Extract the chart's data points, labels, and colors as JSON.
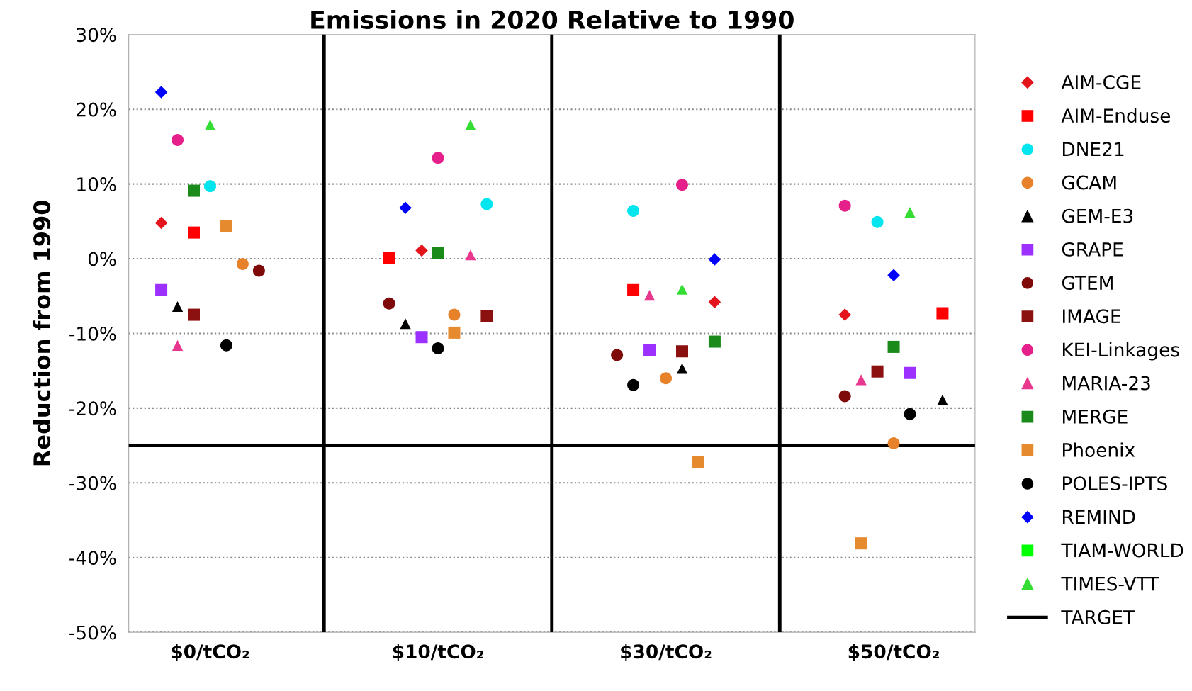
{
  "chart_data": {
    "type": "scatter",
    "title": "Emissions in 2020 Relative to 1990",
    "ylabel": "Reduction from 1990",
    "categories": [
      null,
      null,
      null,
      "$0/tCO₂",
      null,
      null,
      null,
      null,
      null,
      null,
      null,
      null,
      null,
      null,
      null,
      null,
      null,
      "$10/tCO₂",
      null,
      null,
      null,
      null,
      null,
      null,
      null,
      null,
      null,
      null,
      null,
      null,
      null,
      "$30/tCO₂",
      null,
      null,
      null,
      null,
      null,
      null,
      null,
      null,
      null,
      null,
      null,
      null,
      null,
      "$50/tCO₂",
      null,
      null,
      null
    ],
    "ylim": [
      -50,
      30
    ],
    "yticks": [
      {
        "value": 30,
        "label": "30%"
      },
      {
        "value": 20,
        "label": "20%"
      },
      {
        "value": 10,
        "label": "10%"
      },
      {
        "value": 0,
        "label": "0%"
      },
      {
        "value": -10,
        "label": "-10%"
      },
      {
        "value": -20,
        "label": "-20%"
      },
      {
        "value": -30,
        "label": "-30%"
      },
      {
        "value": -40,
        "label": "-40%"
      },
      {
        "value": -50,
        "label": "-50%"
      }
    ],
    "grid": true,
    "legend": "right",
    "ref_lines": [
      {
        "axis": "y",
        "value": -25,
        "label": "TARGET",
        "color": "#000000"
      }
    ],
    "series": [
      {
        "name": "AIM-CGE",
        "color": "#e3141c",
        "marker": "diamond",
        "values": [
          4.8,
          null,
          null,
          null,
          null,
          null,
          null,
          null,
          null,
          null,
          null,
          null,
          null,
          null,
          null,
          null,
          1.1,
          null,
          null,
          null,
          null,
          null,
          null,
          null,
          null,
          null,
          null,
          null,
          null,
          null,
          null,
          null,
          null,
          null,
          -5.8,
          null,
          null,
          null,
          null,
          null,
          null,
          null,
          -7.5,
          null,
          null,
          null,
          null,
          null,
          null
        ]
      },
      {
        "name": "AIM-Enduse",
        "color": "#ff0000",
        "marker": "square",
        "values": [
          null,
          null,
          3.5,
          null,
          null,
          null,
          null,
          null,
          null,
          null,
          null,
          null,
          null,
          null,
          0.1,
          null,
          null,
          null,
          null,
          null,
          null,
          null,
          null,
          null,
          null,
          null,
          null,
          null,
          null,
          -4.2,
          null,
          null,
          null,
          null,
          null,
          null,
          null,
          null,
          null,
          null,
          null,
          null,
          null,
          null,
          null,
          null,
          null,
          null,
          -7.3
        ]
      },
      {
        "name": "DNE21",
        "color": "#00e5ee",
        "marker": "circle",
        "values": [
          null,
          null,
          null,
          9.7,
          null,
          null,
          null,
          null,
          null,
          null,
          null,
          null,
          null,
          null,
          null,
          null,
          null,
          null,
          null,
          null,
          7.3,
          null,
          null,
          null,
          null,
          null,
          null,
          null,
          null,
          6.4,
          null,
          null,
          null,
          null,
          null,
          null,
          null,
          null,
          null,
          null,
          null,
          null,
          null,
          null,
          4.9,
          null,
          null,
          null,
          null
        ]
      },
      {
        "name": "GCAM",
        "color": "#e8822a",
        "marker": "circle",
        "values": [
          null,
          null,
          null,
          null,
          null,
          -0.7,
          null,
          null,
          null,
          null,
          null,
          null,
          null,
          null,
          null,
          null,
          null,
          null,
          -7.5,
          null,
          null,
          null,
          null,
          null,
          null,
          null,
          null,
          null,
          null,
          null,
          null,
          -16,
          null,
          null,
          null,
          null,
          null,
          null,
          null,
          null,
          null,
          null,
          null,
          null,
          null,
          -24.7,
          null,
          null,
          null
        ]
      },
      {
        "name": "GEM-E3",
        "color": "#000000",
        "marker": "triangle",
        "values": [
          null,
          -6.4,
          null,
          null,
          null,
          null,
          null,
          null,
          null,
          null,
          null,
          null,
          null,
          null,
          null,
          -8.7,
          null,
          null,
          null,
          null,
          null,
          null,
          null,
          null,
          null,
          null,
          null,
          null,
          null,
          null,
          null,
          null,
          -14.7,
          null,
          null,
          null,
          null,
          null,
          null,
          null,
          null,
          null,
          null,
          null,
          null,
          null,
          null,
          null,
          -18.9
        ]
      },
      {
        "name": "GRAPE",
        "color": "#9b30ff",
        "marker": "square",
        "values": [
          -4.2,
          null,
          null,
          null,
          null,
          null,
          null,
          null,
          null,
          null,
          null,
          null,
          null,
          null,
          null,
          null,
          -10.5,
          null,
          null,
          null,
          null,
          null,
          null,
          null,
          null,
          null,
          null,
          null,
          null,
          null,
          -12.2,
          null,
          null,
          null,
          null,
          null,
          null,
          null,
          null,
          null,
          null,
          null,
          null,
          null,
          null,
          null,
          -15.3,
          null,
          null
        ]
      },
      {
        "name": "GTEM",
        "color": "#7f0a0a",
        "marker": "circle",
        "values": [
          null,
          null,
          null,
          null,
          null,
          null,
          -1.6,
          null,
          null,
          null,
          null,
          null,
          null,
          null,
          -6,
          null,
          null,
          null,
          null,
          null,
          null,
          null,
          null,
          null,
          null,
          null,
          null,
          null,
          -12.9,
          null,
          null,
          null,
          null,
          null,
          null,
          null,
          null,
          null,
          null,
          null,
          null,
          null,
          -18.4,
          null,
          null,
          null,
          null,
          null,
          null
        ]
      },
      {
        "name": "IMAGE",
        "color": "#8b1010",
        "marker": "square",
        "values": [
          null,
          null,
          -7.5,
          null,
          null,
          null,
          null,
          null,
          null,
          null,
          null,
          null,
          null,
          null,
          null,
          null,
          null,
          null,
          null,
          null,
          -7.7,
          null,
          null,
          null,
          null,
          null,
          null,
          null,
          null,
          null,
          null,
          null,
          -12.4,
          null,
          null,
          null,
          null,
          null,
          null,
          null,
          null,
          null,
          null,
          null,
          -15.1,
          null,
          null,
          null,
          null
        ]
      },
      {
        "name": "KEI-Linkages",
        "color": "#e6208a",
        "marker": "circle",
        "values": [
          null,
          15.9,
          null,
          null,
          null,
          null,
          null,
          null,
          null,
          null,
          null,
          null,
          null,
          null,
          null,
          null,
          null,
          13.5,
          null,
          null,
          null,
          null,
          null,
          null,
          null,
          null,
          null,
          null,
          null,
          null,
          null,
          null,
          9.9,
          null,
          null,
          null,
          null,
          null,
          null,
          null,
          null,
          null,
          7.1,
          null,
          null,
          null,
          null,
          null,
          null
        ]
      },
      {
        "name": "MARIA-23",
        "color": "#e8388e",
        "marker": "triangle",
        "values": [
          null,
          -11.6,
          null,
          null,
          null,
          null,
          null,
          null,
          null,
          null,
          null,
          null,
          null,
          null,
          null,
          null,
          null,
          null,
          null,
          0.5,
          null,
          null,
          null,
          null,
          null,
          null,
          null,
          null,
          null,
          null,
          -4.9,
          null,
          null,
          null,
          null,
          null,
          null,
          null,
          null,
          null,
          null,
          null,
          null,
          -16.2,
          null,
          null,
          null,
          null,
          null
        ]
      },
      {
        "name": "MERGE",
        "color": "#1a8a1a",
        "marker": "square",
        "values": [
          null,
          null,
          9.1,
          null,
          null,
          null,
          null,
          null,
          null,
          null,
          null,
          null,
          null,
          null,
          null,
          null,
          null,
          0.8,
          null,
          null,
          null,
          null,
          null,
          null,
          null,
          null,
          null,
          null,
          null,
          null,
          null,
          null,
          null,
          null,
          -11.1,
          null,
          null,
          null,
          null,
          null,
          null,
          null,
          null,
          null,
          null,
          -11.8,
          null,
          null,
          null
        ]
      },
      {
        "name": "Phoenix",
        "color": "#e58a2e",
        "marker": "square",
        "values": [
          null,
          null,
          null,
          null,
          4.4,
          null,
          null,
          null,
          null,
          null,
          null,
          null,
          null,
          null,
          null,
          null,
          null,
          null,
          -9.9,
          null,
          null,
          null,
          null,
          null,
          null,
          null,
          null,
          null,
          null,
          null,
          null,
          null,
          null,
          -27.2,
          null,
          null,
          null,
          null,
          null,
          null,
          null,
          null,
          null,
          -38.1,
          null,
          null,
          null,
          null,
          null
        ]
      },
      {
        "name": "POLES-IPTS",
        "color": "#000000",
        "marker": "circle",
        "values": [
          null,
          null,
          null,
          null,
          -11.6,
          null,
          null,
          null,
          null,
          null,
          null,
          null,
          null,
          null,
          null,
          null,
          null,
          -12,
          null,
          null,
          null,
          null,
          null,
          null,
          null,
          null,
          null,
          null,
          null,
          -16.9,
          null,
          null,
          null,
          null,
          null,
          null,
          null,
          null,
          null,
          null,
          null,
          null,
          null,
          null,
          null,
          null,
          -20.8,
          null,
          null
        ]
      },
      {
        "name": "REMIND",
        "color": "#0000ff",
        "marker": "diamond",
        "values": [
          22.3,
          null,
          null,
          null,
          null,
          null,
          null,
          null,
          null,
          null,
          null,
          null,
          null,
          null,
          null,
          6.8,
          null,
          null,
          null,
          null,
          null,
          null,
          null,
          null,
          null,
          null,
          null,
          null,
          null,
          null,
          null,
          null,
          null,
          null,
          -0.1,
          null,
          null,
          null,
          null,
          null,
          null,
          null,
          null,
          null,
          null,
          -2.2,
          null,
          null,
          null
        ]
      },
      {
        "name": "TIAM-WORLD",
        "color": "#00ff00",
        "marker": "square",
        "values": [
          null,
          null,
          null,
          null,
          null,
          null,
          null,
          null,
          null,
          null,
          null,
          null,
          null,
          null,
          null,
          null,
          null,
          null,
          null,
          null,
          null,
          null,
          null,
          null,
          null,
          null,
          null,
          null,
          null,
          null,
          null,
          null,
          null,
          null,
          null,
          null,
          null,
          null,
          null,
          null,
          null,
          null,
          null,
          null,
          null,
          null,
          null,
          null,
          null
        ]
      },
      {
        "name": "TIMES-VTT",
        "color": "#33dd33",
        "marker": "triangle",
        "values": [
          null,
          null,
          null,
          17.9,
          null,
          null,
          null,
          null,
          null,
          null,
          null,
          null,
          null,
          null,
          null,
          null,
          null,
          null,
          null,
          17.9,
          null,
          null,
          null,
          null,
          null,
          null,
          null,
          null,
          null,
          null,
          null,
          null,
          -4.1,
          null,
          null,
          null,
          null,
          null,
          null,
          null,
          null,
          null,
          null,
          null,
          null,
          null,
          6.2,
          null,
          null
        ]
      }
    ]
  }
}
